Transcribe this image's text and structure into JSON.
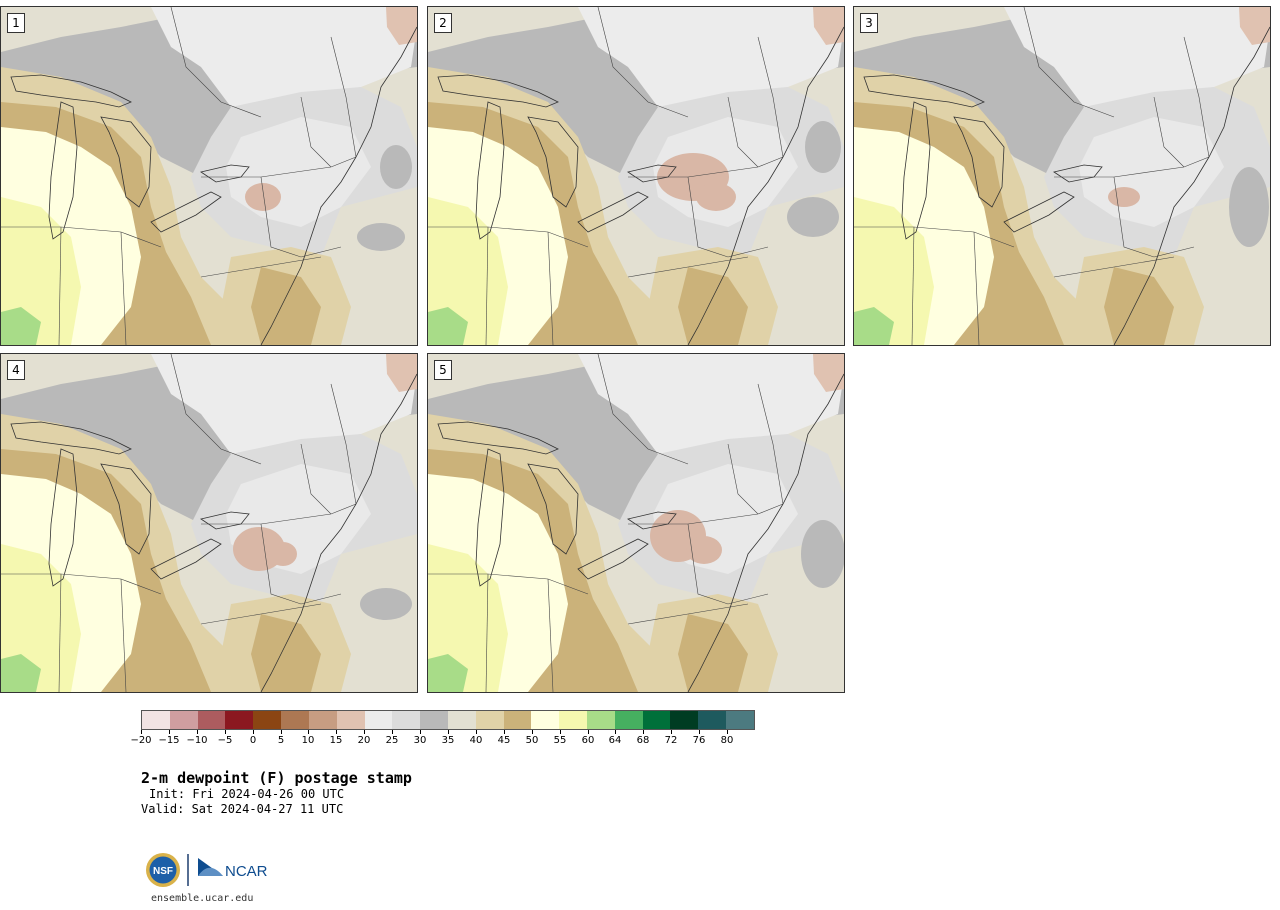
{
  "panels": [
    {
      "label": "1",
      "variant": 0
    },
    {
      "label": "2",
      "variant": 1
    },
    {
      "label": "3",
      "variant": 2
    },
    {
      "label": "4",
      "variant": 3
    },
    {
      "label": "5",
      "variant": 4
    }
  ],
  "colorbar": {
    "colors": [
      "#f2e4e4",
      "#cf9ea0",
      "#ad5c5f",
      "#8b1820",
      "#8b4513",
      "#ad7853",
      "#c79d82",
      "#e0c2b1",
      "#ececec",
      "#dcdcdc",
      "#b9b9b9",
      "#e2e0d2",
      "#e0d2a8",
      "#cbb27a",
      "#ffffe0",
      "#f5f8b0",
      "#a8dc88",
      "#46b060",
      "#00703a",
      "#003c22",
      "#1e5a5e",
      "#4c7a80"
    ],
    "tick_labels": [
      "−20",
      "−15",
      "−10",
      "−5",
      "0",
      "5",
      "10",
      "15",
      "20",
      "25",
      "30",
      "35",
      "40",
      "45",
      "50",
      "55",
      "60",
      "64",
      "68",
      "72",
      "76",
      "80"
    ]
  },
  "title": "2-m dewpoint (F) postage stamp",
  "init": "Init: Fri 2024-04-26 00 UTC",
  "valid": "Valid: Sat 2024-04-27 11 UTC",
  "logo": {
    "nsf": "NSF",
    "ncar": "NCAR"
  },
  "url": "ensemble.ucar.edu"
}
